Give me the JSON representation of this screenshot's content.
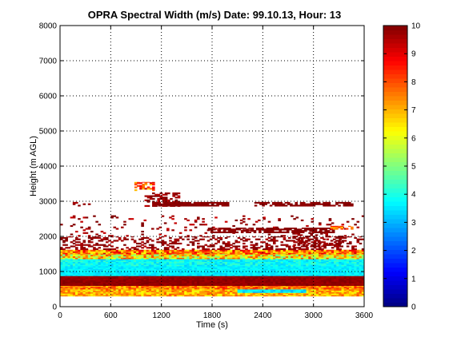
{
  "chart_data": {
    "type": "heatmap",
    "title": "OPRA Spectral Width (m/s)  Date: 99.10.13, Hour: 13",
    "xlabel": "Time (s)",
    "ylabel": "Height (m AGL)",
    "xlim": [
      0,
      3600
    ],
    "ylim": [
      0,
      8000
    ],
    "xticks": [
      "0",
      "600",
      "1200",
      "1800",
      "2400",
      "3000",
      "3600"
    ],
    "yticks": [
      "0",
      "1000",
      "2000",
      "3000",
      "4000",
      "5000",
      "6000",
      "7000",
      "8000"
    ],
    "grid": true,
    "colorbar": {
      "range": [
        0,
        10
      ],
      "ticks": [
        "0",
        "1",
        "2",
        "3",
        "4",
        "5",
        "6",
        "7",
        "8",
        "9",
        "10"
      ],
      "colormap": "jet"
    },
    "bands": [
      {
        "t0": 0,
        "t1": 3600,
        "h0": 300,
        "h1": 500,
        "v": 7.0,
        "jitter": 1.0
      },
      {
        "t0": 2100,
        "t1": 2900,
        "h0": 400,
        "h1": 560,
        "v": 3.5,
        "jitter": 0.6
      },
      {
        "t0": 0,
        "t1": 3600,
        "h0": 500,
        "h1": 600,
        "v": 7.6,
        "jitter": 1.0
      },
      {
        "t0": 0,
        "t1": 3600,
        "h0": 600,
        "h1": 880,
        "v": 9.8,
        "jitter": 0.2
      },
      {
        "t0": 0,
        "t1": 3600,
        "h0": 880,
        "h1": 1160,
        "v": 3.6,
        "jitter": 0.3
      },
      {
        "t0": 0,
        "t1": 3600,
        "h0": 1160,
        "h1": 1360,
        "v": 3.8,
        "jitter": 0.6
      },
      {
        "t0": 0,
        "t1": 3600,
        "h0": 1360,
        "h1": 1500,
        "v": 6.4,
        "jitter": 1.8
      },
      {
        "t0": 0,
        "t1": 3600,
        "h0": 1500,
        "h1": 1620,
        "v": 7.6,
        "jitter": 1.5
      }
    ],
    "patches": [
      {
        "t0": 0,
        "t1": 3600,
        "h0": 1620,
        "h1": 2000,
        "v": 9.8,
        "density": 0.35,
        "jitter": 0.3
      },
      {
        "t0": 0,
        "t1": 3600,
        "h0": 2000,
        "h1": 2600,
        "v": 9.7,
        "density": 0.08,
        "jitter": 0.5
      },
      {
        "t0": 1750,
        "t1": 3250,
        "h0": 2100,
        "h1": 2250,
        "v": 9.9,
        "density": 0.75,
        "jitter": 0.1
      },
      {
        "t0": 880,
        "t1": 1100,
        "h0": 3300,
        "h1": 3550,
        "v": 8.0,
        "density": 0.6,
        "jitter": 1.5
      },
      {
        "t0": 1000,
        "t1": 1400,
        "h0": 2850,
        "h1": 3250,
        "v": 9.8,
        "density": 0.55,
        "jitter": 0.4
      },
      {
        "t0": 1100,
        "t1": 2000,
        "h0": 2860,
        "h1": 2980,
        "v": 9.9,
        "density": 0.95,
        "jitter": 0.1
      },
      {
        "t0": 2300,
        "t1": 3450,
        "h0": 2860,
        "h1": 2980,
        "v": 9.9,
        "density": 0.7,
        "jitter": 0.1
      },
      {
        "t0": 150,
        "t1": 350,
        "h0": 2860,
        "h1": 2980,
        "v": 9.8,
        "density": 0.25,
        "jitter": 0.2
      },
      {
        "t0": 2750,
        "t1": 3350,
        "h0": 1700,
        "h1": 2100,
        "v": 9.8,
        "density": 0.35,
        "jitter": 0.3
      },
      {
        "t0": 3200,
        "t1": 3450,
        "h0": 2200,
        "h1": 2300,
        "v": 7.8,
        "density": 0.6,
        "jitter": 1.0
      }
    ]
  }
}
